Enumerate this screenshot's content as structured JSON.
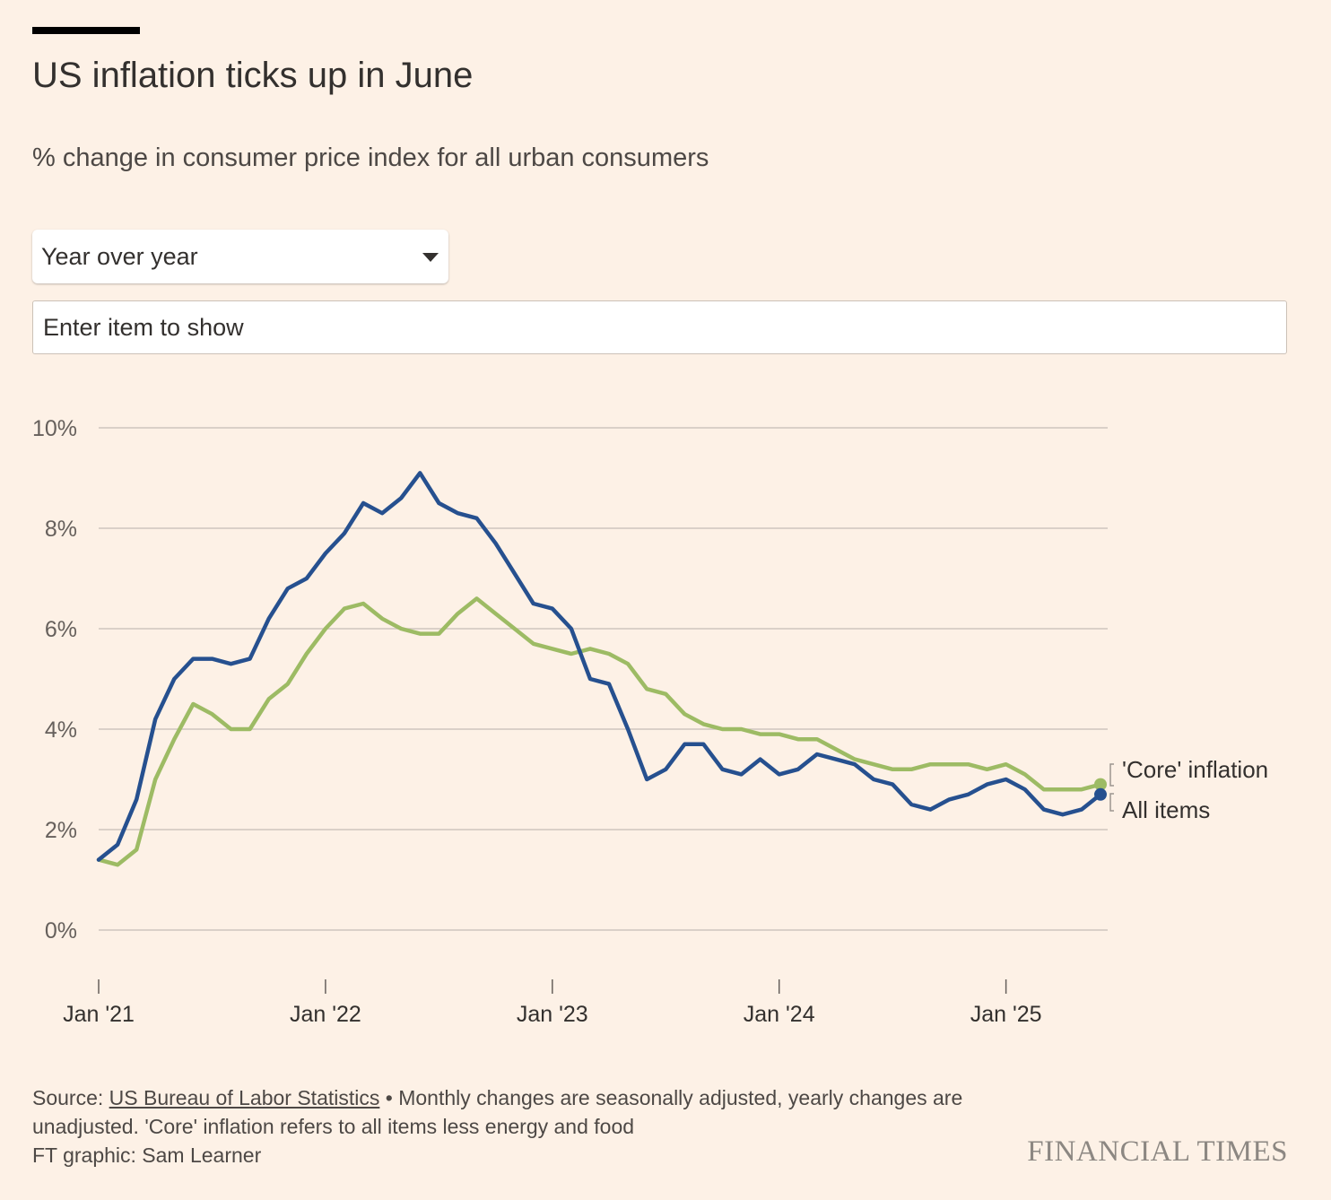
{
  "title": "US inflation ticks up in June",
  "subtitle": "% change in consumer price index for all urban consumers",
  "controls": {
    "period_select": "Year over year",
    "item_input_placeholder": "Enter item to show"
  },
  "chart_data": {
    "type": "line",
    "title": "US inflation ticks up in June",
    "subtitle": "% change in consumer price index for all urban consumers",
    "xlabel": "",
    "ylabel": "",
    "ylim": [
      0,
      10
    ],
    "y_ticks": [
      0,
      2,
      4,
      6,
      8,
      10
    ],
    "y_tick_labels": [
      "0%",
      "2%",
      "4%",
      "6%",
      "8%",
      "10%"
    ],
    "x_ticks": [
      "2021-01",
      "2022-01",
      "2023-01",
      "2024-01",
      "2025-01"
    ],
    "x_tick_labels": [
      "Jan '21",
      "Jan '22",
      "Jan '23",
      "Jan '24",
      "Jan '25"
    ],
    "grid": true,
    "x": [
      "2021-01",
      "2021-02",
      "2021-03",
      "2021-04",
      "2021-05",
      "2021-06",
      "2021-07",
      "2021-08",
      "2021-09",
      "2021-10",
      "2021-11",
      "2021-12",
      "2022-01",
      "2022-02",
      "2022-03",
      "2022-04",
      "2022-05",
      "2022-06",
      "2022-07",
      "2022-08",
      "2022-09",
      "2022-10",
      "2022-11",
      "2022-12",
      "2023-01",
      "2023-02",
      "2023-03",
      "2023-04",
      "2023-05",
      "2023-06",
      "2023-07",
      "2023-08",
      "2023-09",
      "2023-10",
      "2023-11",
      "2023-12",
      "2024-01",
      "2024-02",
      "2024-03",
      "2024-04",
      "2024-05",
      "2024-06",
      "2024-07",
      "2024-08",
      "2024-09",
      "2024-10",
      "2024-11",
      "2024-12",
      "2025-01",
      "2025-02",
      "2025-03",
      "2025-04",
      "2025-05",
      "2025-06"
    ],
    "series": [
      {
        "name": "'Core' inflation",
        "color": "#9dbb64",
        "values": [
          1.4,
          1.3,
          1.6,
          3.0,
          3.8,
          4.5,
          4.3,
          4.0,
          4.0,
          4.6,
          4.9,
          5.5,
          6.0,
          6.4,
          6.5,
          6.2,
          6.0,
          5.9,
          5.9,
          6.3,
          6.6,
          6.3,
          6.0,
          5.7,
          5.6,
          5.5,
          5.6,
          5.5,
          5.3,
          4.8,
          4.7,
          4.3,
          4.1,
          4.0,
          4.0,
          3.9,
          3.9,
          3.8,
          3.8,
          3.6,
          3.4,
          3.3,
          3.2,
          3.2,
          3.3,
          3.3,
          3.3,
          3.2,
          3.3,
          3.1,
          2.8,
          2.8,
          2.8,
          2.9
        ]
      },
      {
        "name": "All items",
        "color": "#26508f",
        "values": [
          1.4,
          1.7,
          2.6,
          4.2,
          5.0,
          5.4,
          5.4,
          5.3,
          5.4,
          6.2,
          6.8,
          7.0,
          7.5,
          7.9,
          8.5,
          8.3,
          8.6,
          9.1,
          8.5,
          8.3,
          8.2,
          7.7,
          7.1,
          6.5,
          6.4,
          6.0,
          5.0,
          4.9,
          4.0,
          3.0,
          3.2,
          3.7,
          3.7,
          3.2,
          3.1,
          3.4,
          3.1,
          3.2,
          3.5,
          3.4,
          3.3,
          3.0,
          2.9,
          2.5,
          2.4,
          2.6,
          2.7,
          2.9,
          3.0,
          2.8,
          2.4,
          2.3,
          2.4,
          2.7
        ]
      }
    ]
  },
  "footer": {
    "source_prefix": "Source: ",
    "source_link": "US Bureau of Labor Statistics",
    "note": " • Monthly changes are seasonally adjusted, yearly changes are unadjusted. 'Core' inflation refers to all items less energy and food",
    "credit": "FT graphic: Sam Learner",
    "logo": "FINANCIAL TIMES"
  }
}
